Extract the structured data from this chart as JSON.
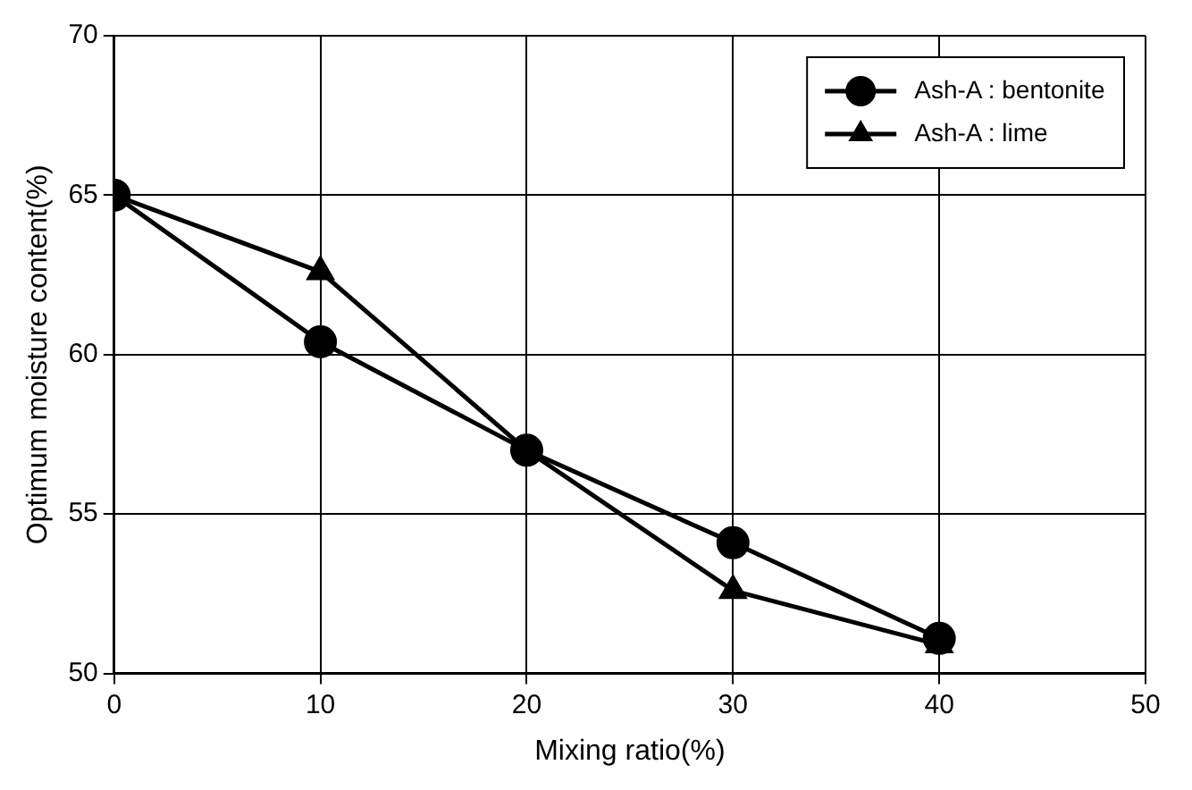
{
  "chart_data": {
    "type": "line",
    "xlabel": "Mixing ratio(%)",
    "ylabel": "Optimum moisture content(%)",
    "x": [
      0,
      10,
      20,
      30,
      40
    ],
    "series": [
      {
        "name": "Ash-A : bentonite",
        "color": "#000000",
        "marker": "circle",
        "values": [
          65,
          60.4,
          57,
          54.1,
          51.1
        ]
      },
      {
        "name": "Ash-A : lime",
        "color": "#000000",
        "marker": "triangle",
        "values": [
          65,
          62.6,
          57,
          52.6,
          50.9
        ]
      }
    ],
    "xlim": [
      0,
      50
    ],
    "xticks": [
      0,
      10,
      20,
      30,
      40,
      50
    ],
    "ylim": [
      50,
      70
    ],
    "yticks": [
      50,
      55,
      60,
      65,
      70
    ],
    "grid": true,
    "legend": "top right",
    "line_style": "solid"
  }
}
